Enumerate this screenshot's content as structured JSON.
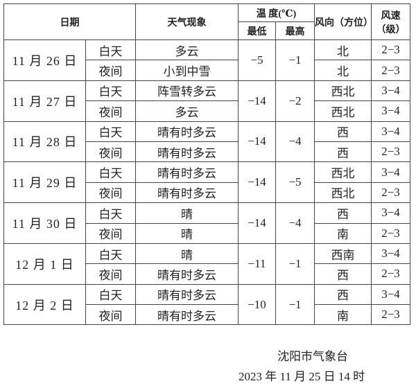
{
  "header": {
    "date": "日期",
    "weather": "天气现象",
    "temperature": "温  度(℃)",
    "min": "最低",
    "max": "最高",
    "wind_dir": "风向（方位）",
    "wind_speed": "风速（级）"
  },
  "days": [
    {
      "date": "11 月 26 日",
      "min": "−5",
      "max": "−1",
      "day": {
        "period": "白天",
        "weather": "多云",
        "dir": "北",
        "speed": "2−3"
      },
      "night": {
        "period": "夜间",
        "weather": "小到中雪",
        "dir": "北",
        "speed": "2−3"
      }
    },
    {
      "date": "11 月 27 日",
      "min": "−14",
      "max": "−2",
      "day": {
        "period": "白天",
        "weather": "阵雪转多云",
        "dir": "西北",
        "speed": "3−4"
      },
      "night": {
        "period": "夜间",
        "weather": "多云",
        "dir": "西北",
        "speed": "3−4"
      }
    },
    {
      "date": "11 月 28 日",
      "min": "−14",
      "max": "−4",
      "day": {
        "period": "白天",
        "weather": "晴有时多云",
        "dir": "西",
        "speed": "3−4"
      },
      "night": {
        "period": "夜间",
        "weather": "晴有时多云",
        "dir": "西",
        "speed": "2−3"
      }
    },
    {
      "date": "11 月 29 日",
      "min": "−14",
      "max": "−5",
      "day": {
        "period": "白天",
        "weather": "晴有时多云",
        "dir": "西北",
        "speed": "3−4"
      },
      "night": {
        "period": "夜间",
        "weather": "晴有时多云",
        "dir": "西北",
        "speed": "2−3"
      }
    },
    {
      "date": "11 月 30 日",
      "min": "−14",
      "max": "−4",
      "day": {
        "period": "白天",
        "weather": "晴",
        "dir": "西",
        "speed": "3−4"
      },
      "night": {
        "period": "夜间",
        "weather": "晴",
        "dir": "南",
        "speed": "2−3"
      }
    },
    {
      "date": "12 月 1 日",
      "min": "−11",
      "max": "−1",
      "day": {
        "period": "白天",
        "weather": "晴",
        "dir": "西南",
        "speed": "3−4"
      },
      "night": {
        "period": "夜间",
        "weather": "晴有时多云",
        "dir": "西",
        "speed": "2−3"
      }
    },
    {
      "date": "12 月 2 日",
      "min": "−10",
      "max": "−1",
      "day": {
        "period": "白天",
        "weather": "晴有时多云",
        "dir": "西",
        "speed": "3−4"
      },
      "night": {
        "period": "夜间",
        "weather": "晴有时多云",
        "dir": "南",
        "speed": "2−3"
      }
    }
  ],
  "footer": {
    "issuer": "沈阳市气象台",
    "issued": "2023 年 11 月 25 日 14 时"
  }
}
